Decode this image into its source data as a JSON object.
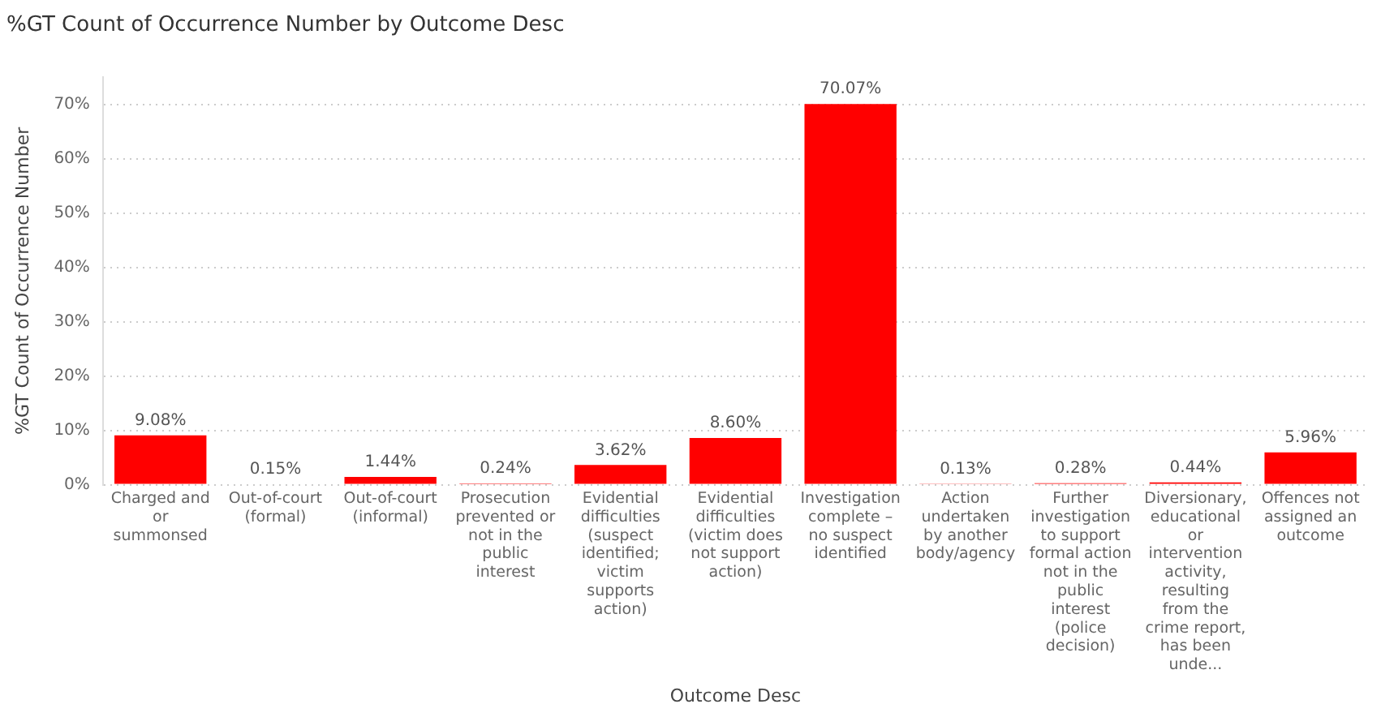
{
  "chart_data": {
    "type": "bar",
    "title": "%GT Count of Occurrence Number by Outcome Desc",
    "xlabel": "Outcome Desc",
    "ylabel": "%GT Count of Occurrence Number",
    "categories": [
      "Charged and or summonsed",
      "Out-of-court (formal)",
      "Out-of-court (informal)",
      "Prosecution prevented or not in the public interest",
      "Evidential difficulties (suspect identified; victim supports action)",
      "Evidential difficulties (victim does not support action)",
      "Investigation complete – no suspect identified",
      "Action undertaken by another body/agency",
      "Further investigation to support formal action not in the public interest (police decision)",
      "Diversionary, educational or intervention activity, resulting from the crime report, has been unde...",
      "Offences not assigned an outcome"
    ],
    "values": [
      9.08,
      0.15,
      1.44,
      0.24,
      3.62,
      8.6,
      70.07,
      0.13,
      0.28,
      0.44,
      5.96
    ],
    "value_labels": [
      "9.08%",
      "0.15%",
      "1.44%",
      "0.24%",
      "3.62%",
      "8.60%",
      "70.07%",
      "0.13%",
      "0.28%",
      "0.44%",
      "5.96%"
    ],
    "color": "#ff0000",
    "ylim": [
      0,
      75
    ],
    "yticks": [
      {
        "value": 0,
        "label": "0%"
      },
      {
        "value": 10,
        "label": "10%"
      },
      {
        "value": 20,
        "label": "20%"
      },
      {
        "value": 30,
        "label": "30%"
      },
      {
        "value": 40,
        "label": "40%"
      },
      {
        "value": 50,
        "label": "50%"
      },
      {
        "value": 60,
        "label": "60%"
      },
      {
        "value": 70,
        "label": "70%"
      }
    ],
    "grid": "y",
    "line_style": "dotted"
  }
}
